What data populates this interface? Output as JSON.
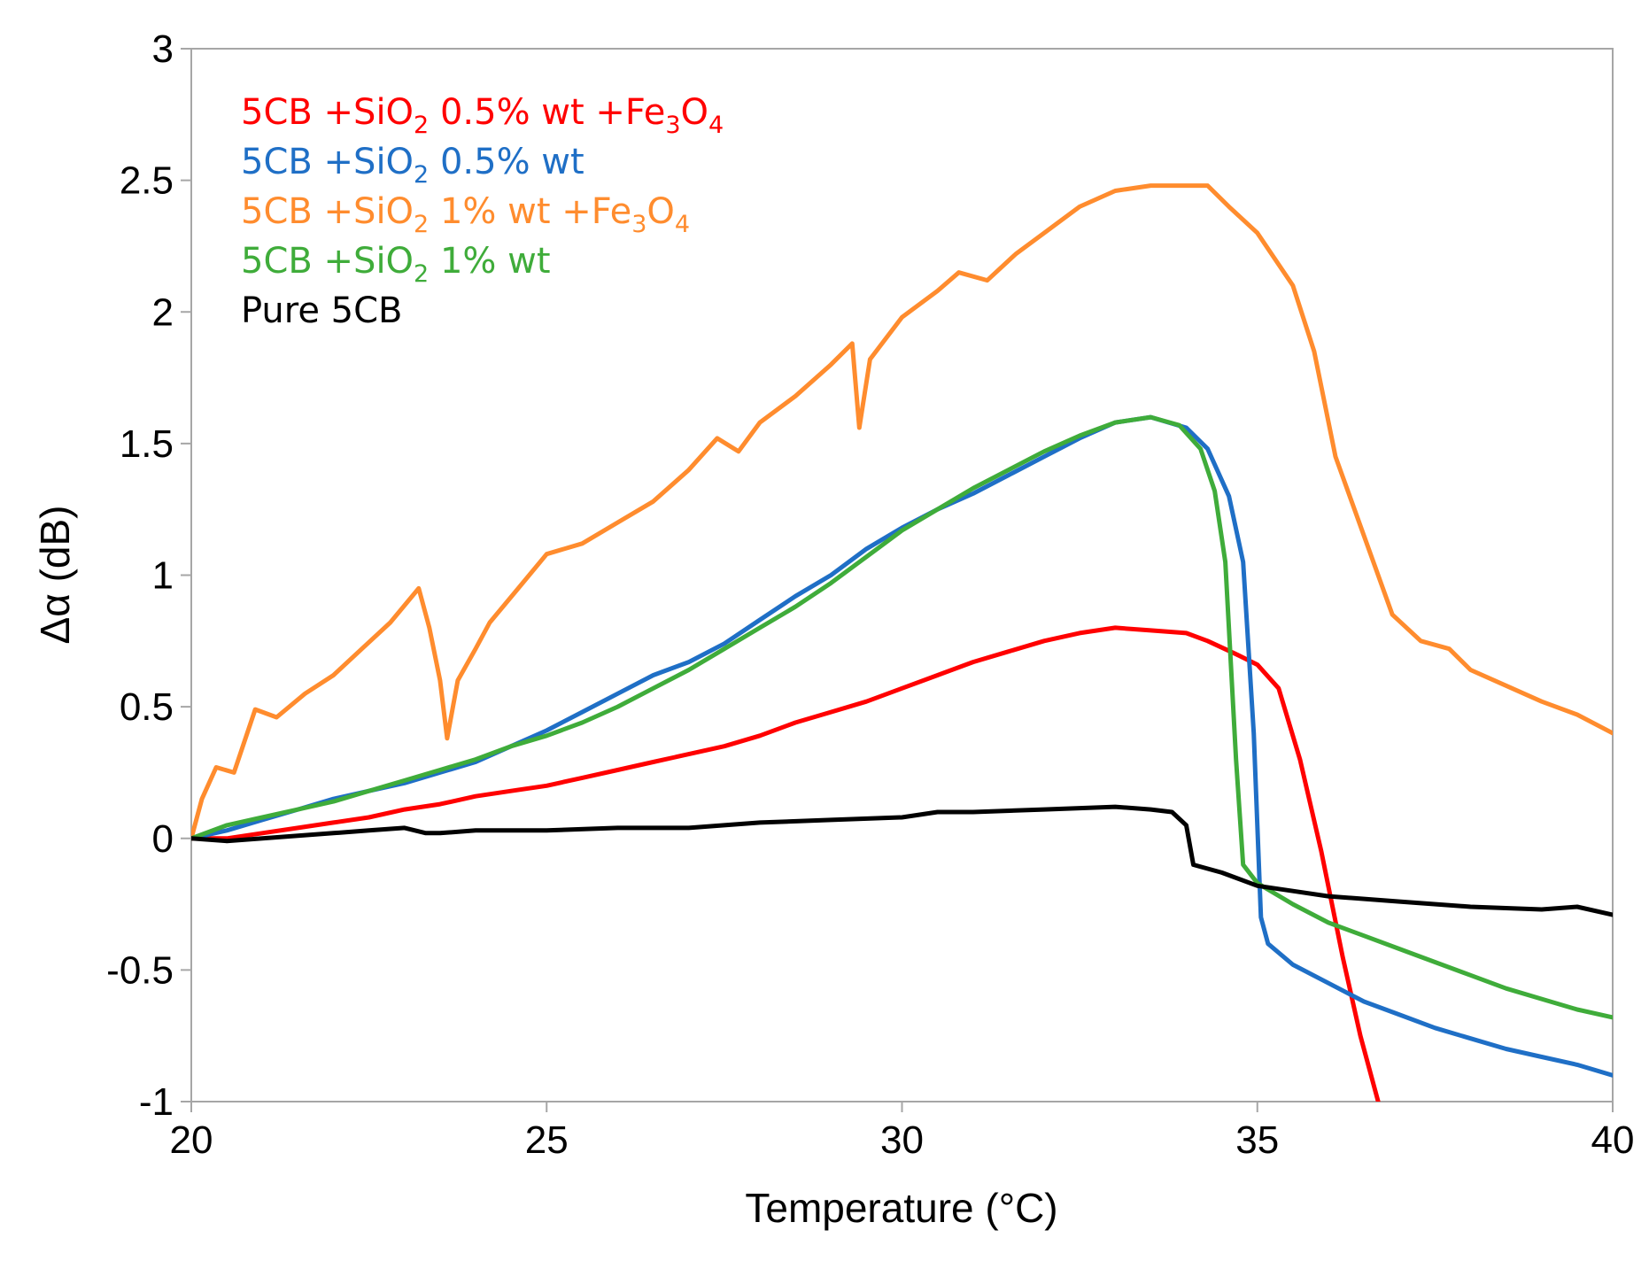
{
  "chart_data": {
    "type": "line",
    "title": "",
    "xlabel": "Temperature (°C)",
    "ylabel": "Δα (dB)",
    "xlim": [
      20,
      40
    ],
    "ylim": [
      -1,
      3
    ],
    "x_ticks": [
      "20",
      "25",
      "30",
      "35",
      "40"
    ],
    "y_ticks": [
      "3",
      "2.5",
      "2",
      "1.5",
      "1",
      "0.5",
      "0",
      "-0.5",
      "-1"
    ],
    "grid": false,
    "legend_position": "top-left",
    "series": [
      {
        "name": "5CB +SiO2 0.5% wt +Fe3O4",
        "legend_parts": [
          "5CB +SiO",
          "2",
          " 0.5% wt +Fe",
          "3",
          "O",
          "4"
        ],
        "color": "#ff0000",
        "points": [
          [
            20,
            0
          ],
          [
            20.5,
            0
          ],
          [
            21,
            0.02
          ],
          [
            21.5,
            0.04
          ],
          [
            22,
            0.06
          ],
          [
            22.5,
            0.08
          ],
          [
            23,
            0.11
          ],
          [
            23.5,
            0.13
          ],
          [
            24,
            0.16
          ],
          [
            24.5,
            0.18
          ],
          [
            25,
            0.2
          ],
          [
            25.5,
            0.23
          ],
          [
            26,
            0.26
          ],
          [
            26.5,
            0.29
          ],
          [
            27,
            0.32
          ],
          [
            27.5,
            0.35
          ],
          [
            28,
            0.39
          ],
          [
            28.5,
            0.44
          ],
          [
            29,
            0.48
          ],
          [
            29.5,
            0.52
          ],
          [
            30,
            0.57
          ],
          [
            30.5,
            0.62
          ],
          [
            31,
            0.67
          ],
          [
            31.5,
            0.71
          ],
          [
            32,
            0.75
          ],
          [
            32.5,
            0.78
          ],
          [
            33,
            0.8
          ],
          [
            33.5,
            0.79
          ],
          [
            34,
            0.78
          ],
          [
            34.3,
            0.75
          ],
          [
            34.7,
            0.7
          ],
          [
            35,
            0.66
          ],
          [
            35.3,
            0.57
          ],
          [
            35.6,
            0.3
          ],
          [
            35.9,
            -0.05
          ],
          [
            36.2,
            -0.45
          ],
          [
            36.45,
            -0.75
          ],
          [
            36.7,
            -1
          ]
        ]
      },
      {
        "name": "5CB +SiO2 0.5% wt",
        "legend_parts": [
          "5CB +SiO",
          "2",
          " 0.5% wt"
        ],
        "color": "#1f6fc6",
        "points": [
          [
            20,
            0
          ],
          [
            20.5,
            0.03
          ],
          [
            21,
            0.07
          ],
          [
            21.5,
            0.11
          ],
          [
            22,
            0.15
          ],
          [
            22.5,
            0.18
          ],
          [
            23,
            0.21
          ],
          [
            23.5,
            0.25
          ],
          [
            24,
            0.29
          ],
          [
            24.5,
            0.35
          ],
          [
            25,
            0.41
          ],
          [
            25.5,
            0.48
          ],
          [
            26,
            0.55
          ],
          [
            26.5,
            0.62
          ],
          [
            27,
            0.67
          ],
          [
            27.5,
            0.74
          ],
          [
            28,
            0.83
          ],
          [
            28.5,
            0.92
          ],
          [
            29,
            1.0
          ],
          [
            29.5,
            1.1
          ],
          [
            30,
            1.18
          ],
          [
            30.5,
            1.25
          ],
          [
            31,
            1.31
          ],
          [
            31.5,
            1.38
          ],
          [
            32,
            1.45
          ],
          [
            32.5,
            1.52
          ],
          [
            33,
            1.58
          ],
          [
            33.5,
            1.6
          ],
          [
            34,
            1.56
          ],
          [
            34.3,
            1.48
          ],
          [
            34.6,
            1.3
          ],
          [
            34.8,
            1.05
          ],
          [
            34.95,
            0.4
          ],
          [
            35.05,
            -0.3
          ],
          [
            35.15,
            -0.4
          ],
          [
            35.5,
            -0.48
          ],
          [
            36,
            -0.55
          ],
          [
            36.5,
            -0.62
          ],
          [
            37,
            -0.67
          ],
          [
            37.5,
            -0.72
          ],
          [
            38,
            -0.76
          ],
          [
            38.5,
            -0.8
          ],
          [
            39,
            -0.83
          ],
          [
            39.5,
            -0.86
          ],
          [
            40,
            -0.9
          ]
        ]
      },
      {
        "name": "5CB +SiO2 1% wt +Fe3O4",
        "legend_parts": [
          "5CB +SiO",
          "2",
          " 1% wt +Fe",
          "3",
          "O",
          "4"
        ],
        "color": "#ff8c2e",
        "points": [
          [
            20,
            0
          ],
          [
            20.15,
            0.15
          ],
          [
            20.35,
            0.27
          ],
          [
            20.6,
            0.25
          ],
          [
            20.9,
            0.49
          ],
          [
            21.2,
            0.46
          ],
          [
            21.6,
            0.55
          ],
          [
            22,
            0.62
          ],
          [
            22.4,
            0.72
          ],
          [
            22.8,
            0.82
          ],
          [
            23.2,
            0.95
          ],
          [
            23.35,
            0.8
          ],
          [
            23.5,
            0.6
          ],
          [
            23.6,
            0.38
          ],
          [
            23.75,
            0.6
          ],
          [
            24.0,
            0.72
          ],
          [
            24.2,
            0.82
          ],
          [
            24.6,
            0.95
          ],
          [
            25,
            1.08
          ],
          [
            25.5,
            1.12
          ],
          [
            26,
            1.2
          ],
          [
            26.5,
            1.28
          ],
          [
            27,
            1.4
          ],
          [
            27.4,
            1.52
          ],
          [
            27.7,
            1.47
          ],
          [
            28,
            1.58
          ],
          [
            28.5,
            1.68
          ],
          [
            29,
            1.8
          ],
          [
            29.3,
            1.88
          ],
          [
            29.4,
            1.56
          ],
          [
            29.55,
            1.82
          ],
          [
            30,
            1.98
          ],
          [
            30.5,
            2.08
          ],
          [
            30.8,
            2.15
          ],
          [
            31.2,
            2.12
          ],
          [
            31.6,
            2.22
          ],
          [
            32,
            2.3
          ],
          [
            32.5,
            2.4
          ],
          [
            33,
            2.46
          ],
          [
            33.5,
            2.48
          ],
          [
            34,
            2.48
          ],
          [
            34.3,
            2.48
          ],
          [
            34.6,
            2.4
          ],
          [
            35,
            2.3
          ],
          [
            35.5,
            2.1
          ],
          [
            35.8,
            1.85
          ],
          [
            36.1,
            1.45
          ],
          [
            36.5,
            1.15
          ],
          [
            36.9,
            0.85
          ],
          [
            37.3,
            0.75
          ],
          [
            37.7,
            0.72
          ],
          [
            38,
            0.64
          ],
          [
            38.5,
            0.58
          ],
          [
            39,
            0.52
          ],
          [
            39.5,
            0.47
          ],
          [
            40,
            0.4
          ]
        ]
      },
      {
        "name": "5CB +SiO2 1% wt",
        "legend_parts": [
          "5CB +SiO",
          "2",
          " 1% wt"
        ],
        "color": "#3fac3a",
        "points": [
          [
            20,
            0
          ],
          [
            20.5,
            0.05
          ],
          [
            21,
            0.08
          ],
          [
            21.5,
            0.11
          ],
          [
            22,
            0.14
          ],
          [
            22.5,
            0.18
          ],
          [
            23,
            0.22
          ],
          [
            23.5,
            0.26
          ],
          [
            24,
            0.3
          ],
          [
            24.5,
            0.35
          ],
          [
            25,
            0.39
          ],
          [
            25.5,
            0.44
          ],
          [
            26,
            0.5
          ],
          [
            26.5,
            0.57
          ],
          [
            27,
            0.64
          ],
          [
            27.5,
            0.72
          ],
          [
            28,
            0.8
          ],
          [
            28.5,
            0.88
          ],
          [
            29,
            0.97
          ],
          [
            29.5,
            1.07
          ],
          [
            30,
            1.17
          ],
          [
            30.5,
            1.25
          ],
          [
            31,
            1.33
          ],
          [
            31.5,
            1.4
          ],
          [
            32,
            1.47
          ],
          [
            32.5,
            1.53
          ],
          [
            33,
            1.58
          ],
          [
            33.5,
            1.6
          ],
          [
            33.9,
            1.57
          ],
          [
            34.2,
            1.48
          ],
          [
            34.4,
            1.32
          ],
          [
            34.55,
            1.05
          ],
          [
            34.7,
            0.3
          ],
          [
            34.8,
            -0.1
          ],
          [
            35,
            -0.17
          ],
          [
            35.5,
            -0.25
          ],
          [
            36,
            -0.32
          ],
          [
            36.5,
            -0.37
          ],
          [
            37,
            -0.42
          ],
          [
            37.5,
            -0.47
          ],
          [
            38,
            -0.52
          ],
          [
            38.5,
            -0.57
          ],
          [
            39,
            -0.61
          ],
          [
            39.5,
            -0.65
          ],
          [
            40,
            -0.68
          ]
        ]
      },
      {
        "name": "Pure 5CB",
        "legend_parts": [
          "Pure 5CB"
        ],
        "color": "#000000",
        "points": [
          [
            20,
            0
          ],
          [
            20.5,
            -0.01
          ],
          [
            21,
            0
          ],
          [
            21.5,
            0.01
          ],
          [
            22,
            0.02
          ],
          [
            22.5,
            0.03
          ],
          [
            23,
            0.04
          ],
          [
            23.3,
            0.02
          ],
          [
            23.5,
            0.02
          ],
          [
            24,
            0.03
          ],
          [
            25,
            0.03
          ],
          [
            26,
            0.04
          ],
          [
            27,
            0.04
          ],
          [
            28,
            0.06
          ],
          [
            29,
            0.07
          ],
          [
            30,
            0.08
          ],
          [
            30.5,
            0.1
          ],
          [
            31,
            0.1
          ],
          [
            32,
            0.11
          ],
          [
            33,
            0.12
          ],
          [
            33.5,
            0.11
          ],
          [
            33.8,
            0.1
          ],
          [
            34,
            0.05
          ],
          [
            34.1,
            -0.1
          ],
          [
            34.5,
            -0.13
          ],
          [
            35,
            -0.18
          ],
          [
            35.5,
            -0.2
          ],
          [
            36,
            -0.22
          ],
          [
            37,
            -0.24
          ],
          [
            38,
            -0.26
          ],
          [
            39,
            -0.27
          ],
          [
            39.5,
            -0.26
          ],
          [
            40,
            -0.29
          ]
        ]
      }
    ]
  }
}
